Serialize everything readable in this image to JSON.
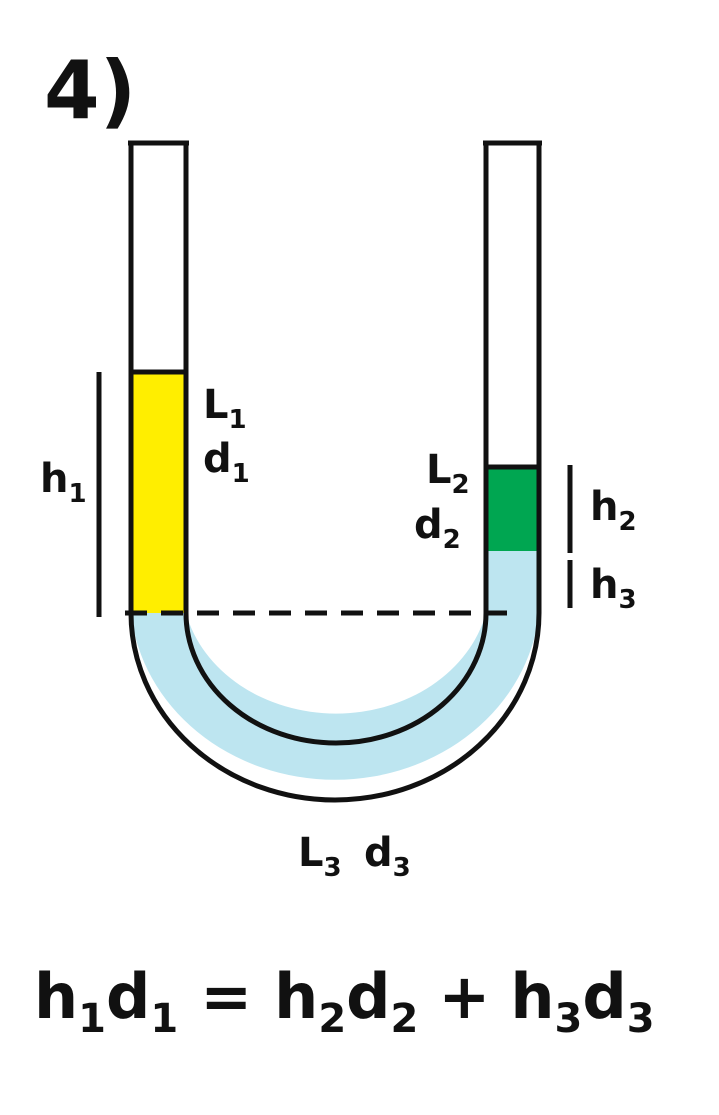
{
  "title": "4)",
  "labels": {
    "left_top": {
      "base": "L",
      "sub": "1"
    },
    "left_bottom": {
      "base": "d",
      "sub": "1"
    },
    "right_top": {
      "base": "L",
      "sub": "2"
    },
    "right_bottom": {
      "base": "d",
      "sub": "2"
    },
    "h1": {
      "base": "h",
      "sub": "1"
    },
    "h2": {
      "base": "h",
      "sub": "2"
    },
    "h3": {
      "base": "h",
      "sub": "3"
    },
    "bottom_L": {
      "base": "L",
      "sub": "3"
    },
    "bottom_d": {
      "base": "d",
      "sub": "3"
    }
  },
  "equation": {
    "t1": {
      "base": "h",
      "sub": "1"
    },
    "t2": {
      "base": "d",
      "sub": "1"
    },
    "eq": "=",
    "t3": {
      "base": "h",
      "sub": "2"
    },
    "t4": {
      "base": "d",
      "sub": "2"
    },
    "plus": "+",
    "t5": {
      "base": "h",
      "sub": "3"
    },
    "t6": {
      "base": "d",
      "sub": "3"
    }
  },
  "colors": {
    "liquid1": "#ffee00",
    "liquid2": "#00a651",
    "liquid3": "#bde5f0",
    "outline": "#111111"
  }
}
